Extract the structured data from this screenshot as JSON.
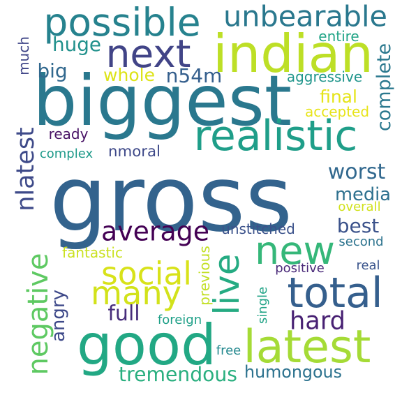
{
  "words": [
    {
      "text": "gross",
      "color": "#33638d"
    },
    {
      "text": "biggest",
      "color": "#2a788e"
    },
    {
      "text": "good",
      "color": "#22a884"
    },
    {
      "text": "indian",
      "color": "#bddf26"
    },
    {
      "text": "latest",
      "color": "#a5db36"
    },
    {
      "text": "possible",
      "color": "#26828e"
    },
    {
      "text": "realistic",
      "color": "#1f9e89"
    },
    {
      "text": "next",
      "color": "#414487"
    },
    {
      "text": "new",
      "color": "#35b779"
    },
    {
      "text": "total",
      "color": "#355f8d"
    },
    {
      "text": "social",
      "color": "#d8e219"
    },
    {
      "text": "many",
      "color": "#d2e21b"
    },
    {
      "text": "unbearable",
      "color": "#2a788e"
    },
    {
      "text": "live",
      "color": "#25ab82"
    },
    {
      "text": "average",
      "color": "#440154"
    },
    {
      "text": "negative",
      "color": "#5ec962"
    },
    {
      "text": "hard",
      "color": "#482173"
    },
    {
      "text": "nlatest",
      "color": "#3e4a89"
    },
    {
      "text": "tremendous",
      "color": "#29af7f"
    },
    {
      "text": "humongous",
      "color": "#2c728e"
    },
    {
      "text": "complete",
      "color": "#2a788e"
    },
    {
      "text": "worst",
      "color": "#31688e"
    },
    {
      "text": "media",
      "color": "#2d708e"
    },
    {
      "text": "best",
      "color": "#3b528b"
    },
    {
      "text": "full",
      "color": "#472d7b"
    },
    {
      "text": "huge",
      "color": "#21918c"
    },
    {
      "text": "big",
      "color": "#31688e"
    },
    {
      "text": "whole",
      "color": "#dde318"
    },
    {
      "text": "n54m",
      "color": "#355f8d"
    },
    {
      "text": "final",
      "color": "#e5e419"
    },
    {
      "text": "nmoral",
      "color": "#3e4989"
    },
    {
      "text": "angry",
      "color": "#3e4989"
    },
    {
      "text": "unstitched",
      "color": "#3b528b"
    },
    {
      "text": "accepted",
      "color": "#e7e419"
    },
    {
      "text": "aggressive",
      "color": "#1f958b"
    },
    {
      "text": "previous",
      "color": "#c2df23"
    },
    {
      "text": "entire",
      "color": "#20a486"
    },
    {
      "text": "much",
      "color": "#404688"
    },
    {
      "text": "ready",
      "color": "#471164"
    },
    {
      "text": "complex",
      "color": "#1f9a8a"
    },
    {
      "text": "overall",
      "color": "#d0e11c"
    },
    {
      "text": "second",
      "color": "#2c738e"
    },
    {
      "text": "fantastic",
      "color": "#cae11f"
    },
    {
      "text": "real",
      "color": "#3a548c"
    },
    {
      "text": "positive",
      "color": "#482878"
    },
    {
      "text": "single",
      "color": "#20a386"
    },
    {
      "text": "foreign",
      "color": "#1fa088"
    },
    {
      "text": "free",
      "color": "#23888e"
    }
  ]
}
